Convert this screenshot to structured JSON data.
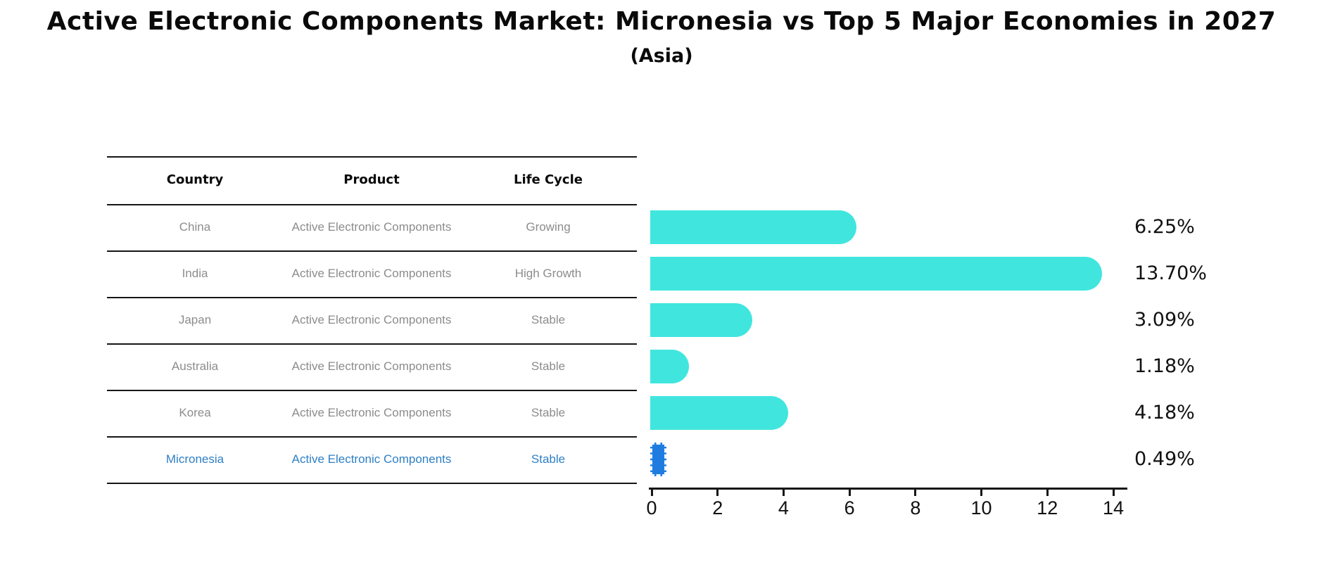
{
  "title": "Active Electronic Components Market: Micronesia vs Top 5 Major Economies in 2027",
  "subtitle": "(Asia)",
  "table": {
    "headers": [
      "Country",
      "Product",
      "Life Cycle"
    ],
    "rows": [
      {
        "country": "China",
        "product": "Active Electronic Components",
        "life_cycle": "Growing",
        "highlight": false
      },
      {
        "country": "India",
        "product": "Active Electronic Components",
        "life_cycle": "High Growth",
        "highlight": false
      },
      {
        "country": "Japan",
        "product": "Active Electronic Components",
        "life_cycle": "Stable",
        "highlight": false
      },
      {
        "country": "Australia",
        "product": "Active Electronic Components",
        "life_cycle": "Stable",
        "highlight": false
      },
      {
        "country": "Korea",
        "product": "Active Electronic Components",
        "life_cycle": "Stable",
        "highlight": false
      },
      {
        "country": "Micronesia",
        "product": "Active Electronic Components",
        "life_cycle": "Stable",
        "highlight": true
      }
    ]
  },
  "chart_data": {
    "type": "bar",
    "orientation": "horizontal",
    "title": "Active Electronic Components Market: Micronesia vs Top 5 Major Economies in 2027 (Asia)",
    "categories": [
      "China",
      "India",
      "Japan",
      "Australia",
      "Korea",
      "Micronesia"
    ],
    "values": [
      6.25,
      13.7,
      3.09,
      1.18,
      4.18,
      0.49
    ],
    "value_labels": [
      "6.25%",
      "13.70%",
      "3.09%",
      "1.18%",
      "4.18%",
      "0.49%"
    ],
    "xlabel": "",
    "ylabel": "",
    "xlim": [
      0,
      14
    ],
    "x_ticks": [
      0,
      2,
      4,
      6,
      8,
      10,
      12,
      14
    ],
    "x_tick_labels": [
      "0",
      "2",
      "4",
      "6",
      "8",
      "10",
      "12",
      "14"
    ],
    "grid": false,
    "legend": false,
    "highlight_index": 5,
    "colors": {
      "bar": "#40E6DE",
      "highlight_bar": "#1E7CE0",
      "highlight_text": "#2E7FC4",
      "row_text": "#8C8C8C",
      "axis": "#161616"
    }
  }
}
